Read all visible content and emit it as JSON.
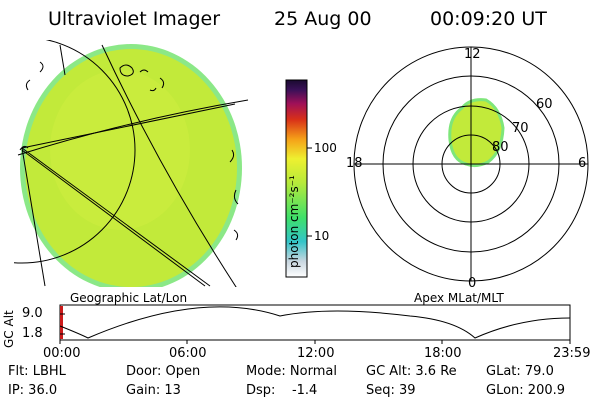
{
  "header": {
    "title": "Ultraviolet Imager",
    "date": "25 Aug 00",
    "time": "00:09:20 UT"
  },
  "colorbar": {
    "unit_label": "photon cm⁻²s⁻¹",
    "ticks": [
      "100",
      "10"
    ]
  },
  "polar_plot": {
    "mlt_labels": [
      "12",
      "18",
      "6",
      "0"
    ],
    "lat_labels": [
      "60",
      "70",
      "80"
    ],
    "caption": "Apex MLat/MLT"
  },
  "geo_plot": {
    "caption": "Geographic Lat/Lon"
  },
  "altitude_plot": {
    "axis_label": "GC Alt",
    "y_ticks": [
      "9.0",
      "1.8"
    ],
    "x_ticks": [
      "00:00",
      "06:00",
      "12:00",
      "18:00",
      "23:59"
    ]
  },
  "status": {
    "flt": "Flt: LBHL",
    "door": "Door: Open",
    "mode": "Mode: Normal",
    "gc_alt": "GC Alt: 3.6 Re",
    "glat": "GLat:  79.0",
    "ip": "IP: 36.0",
    "gain": "Gain: 13",
    "dsp": "Dsp:    -1.4",
    "seq": "Seq: 39",
    "glon": "GLon: 200.9"
  },
  "colors": {
    "aurora_fill": "#c2ea3a",
    "aurora_edge": "#7ee67a",
    "line": "#000000"
  }
}
